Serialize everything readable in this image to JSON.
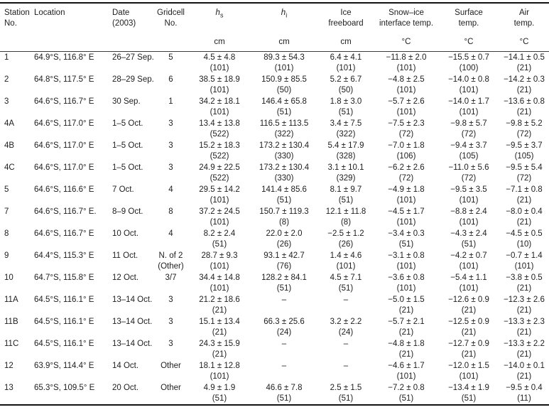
{
  "table": {
    "columns": [
      {
        "line1": "Station",
        "line2": "No.",
        "unit": ""
      },
      {
        "line1": "Location",
        "line2": "",
        "unit": ""
      },
      {
        "line1": "Date",
        "line2": "(2003)",
        "unit": ""
      },
      {
        "line1": "Gridcell",
        "line2": "No.",
        "unit": ""
      },
      {
        "var": "h",
        "sub": "s",
        "line1": "",
        "line2": "",
        "unit": "cm"
      },
      {
        "var": "h",
        "sub": "i",
        "line1": "",
        "line2": "",
        "unit": "cm"
      },
      {
        "line1": "Ice",
        "line2": "freeboard",
        "unit": "cm"
      },
      {
        "line1": "Snow–ice",
        "line2": "interface temp.",
        "unit": "°C"
      },
      {
        "line1": "Surface",
        "line2": "temp.",
        "unit": "°C"
      },
      {
        "line1": "Air",
        "line2": "temp.",
        "unit": "°C"
      }
    ],
    "rows": [
      {
        "cells": [
          [
            "1",
            ""
          ],
          [
            "64.9°S, 116.8° E",
            ""
          ],
          [
            "26–27 Sep.",
            ""
          ],
          [
            "5",
            ""
          ],
          [
            "4.5 ± 4.8",
            "(101)"
          ],
          [
            "89.3 ± 54.3",
            "(101)"
          ],
          [
            "6.4 ± 4.1",
            "(101)"
          ],
          [
            "−11.8 ± 2.0",
            "(101)"
          ],
          [
            "−15.5 ± 0.7",
            "(100)"
          ],
          [
            "−14.1 ± 0.5",
            "(21)"
          ]
        ]
      },
      {
        "cells": [
          [
            "2",
            ""
          ],
          [
            "64.8°S, 117.5° E",
            ""
          ],
          [
            "28–29 Sep.",
            ""
          ],
          [
            "6",
            ""
          ],
          [
            "38.5 ± 18.9",
            "(101)"
          ],
          [
            "150.9 ± 85.5",
            "(50)"
          ],
          [
            "5.2 ± 6.7",
            "(50)"
          ],
          [
            "−4.8 ± 2.5",
            "(101)"
          ],
          [
            "−14.0 ± 0.8",
            "(101)"
          ],
          [
            "−14.2 ± 0.3",
            "(21)"
          ]
        ]
      },
      {
        "cells": [
          [
            "3",
            ""
          ],
          [
            "64.6°S, 116.7° E",
            ""
          ],
          [
            "30 Sep.",
            ""
          ],
          [
            "1",
            ""
          ],
          [
            "34.2 ± 18.1",
            "(101)"
          ],
          [
            "146.4 ± 65.8",
            "(51)"
          ],
          [
            "1.8 ± 3.0",
            "(51)"
          ],
          [
            "−5.7 ± 2.6",
            "(101)"
          ],
          [
            "−14.0 ± 1.7",
            "(101)"
          ],
          [
            "−13.6 ± 0.8",
            "(21)"
          ]
        ]
      },
      {
        "cells": [
          [
            "4A",
            ""
          ],
          [
            "64.6°S, 117.0° E",
            ""
          ],
          [
            "1–5 Oct.",
            ""
          ],
          [
            "3",
            ""
          ],
          [
            "13.4 ± 13.8",
            "(522)"
          ],
          [
            "116.5 ± 113.5",
            "(322)"
          ],
          [
            "3.4 ± 7.5",
            "(322)"
          ],
          [
            "−7.5 ± 2.3",
            "(72)"
          ],
          [
            "−9.8 ± 5.7",
            "(72)"
          ],
          [
            "−9.8 ± 5.2",
            "(72)"
          ]
        ]
      },
      {
        "cells": [
          [
            "4B",
            ""
          ],
          [
            "64.6°S, 117.0° E",
            ""
          ],
          [
            "1–5 Oct.",
            ""
          ],
          [
            "3",
            ""
          ],
          [
            "15.2 ± 18.3",
            "(522)"
          ],
          [
            "173.2 ± 130.4",
            "(330)"
          ],
          [
            "5.4 ± 17.9",
            "(328)"
          ],
          [
            "−7.0 ± 1.8",
            "(106)"
          ],
          [
            "−9.4 ± 3.7",
            "(105)"
          ],
          [
            "−9.5 ± 3.7",
            "(105)"
          ]
        ]
      },
      {
        "cells": [
          [
            "4C",
            ""
          ],
          [
            "64.6°S, 117.0° E",
            ""
          ],
          [
            "1–5 Oct.",
            ""
          ],
          [
            "3",
            ""
          ],
          [
            "24.9 ± 22.5",
            "(522)"
          ],
          [
            "173.2 ± 130.4",
            "(330)"
          ],
          [
            "3.1 ± 10.1",
            "(329)"
          ],
          [
            "−6.2 ± 2.6",
            "(72)"
          ],
          [
            "−11.0 ± 5.6",
            "(72)"
          ],
          [
            "−9.5 ± 5.4",
            "(72)"
          ]
        ]
      },
      {
        "cells": [
          [
            "5",
            ""
          ],
          [
            "64.6°S, 116.6° E",
            ""
          ],
          [
            "7 Oct.",
            ""
          ],
          [
            "4",
            ""
          ],
          [
            "29.5 ± 14.2",
            "(101)"
          ],
          [
            "141.4 ± 85.6",
            "(51)"
          ],
          [
            "8.1 ± 9.7",
            "(51)"
          ],
          [
            "−4.9 ± 1.8",
            "(101)"
          ],
          [
            "−9.5 ± 3.5",
            "(101)"
          ],
          [
            "−7.1 ± 0.8",
            "(21)"
          ]
        ]
      },
      {
        "cells": [
          [
            "7",
            ""
          ],
          [
            "64.6°S, 116.7° E.",
            ""
          ],
          [
            "8–9 Oct.",
            ""
          ],
          [
            "8",
            ""
          ],
          [
            "37.2 ± 24.5",
            "(101)"
          ],
          [
            "150.7 ± 119.3",
            "(8)"
          ],
          [
            "12.1 ± 11.8",
            "(8)"
          ],
          [
            "−4.5 ± 1.7",
            "(101)"
          ],
          [
            "−8.8 ± 2.4",
            "(101)"
          ],
          [
            "−8.0 ± 0.4",
            "(21)"
          ]
        ]
      },
      {
        "cells": [
          [
            "8",
            ""
          ],
          [
            "64.6°S, 116.7° E",
            ""
          ],
          [
            "10 Oct.",
            ""
          ],
          [
            "4",
            ""
          ],
          [
            "8.2 ± 2.4",
            "(51)"
          ],
          [
            "22.0 ± 2.0",
            "(26)"
          ],
          [
            "−2.5 ± 1.2",
            "(26)"
          ],
          [
            "−3.4 ± 0.3",
            "(51)"
          ],
          [
            "−4.3 ± 2.4",
            "(51)"
          ],
          [
            "−4.5 ± 0.5",
            "(10)"
          ]
        ]
      },
      {
        "cells": [
          [
            "9",
            ""
          ],
          [
            "64.4°S, 115.3° E",
            ""
          ],
          [
            "11 Oct.",
            ""
          ],
          [
            "N. of 2",
            "(Other)"
          ],
          [
            "28.7 ± 9.3",
            "(101)"
          ],
          [
            "93.1 ± 42.7",
            "(76)"
          ],
          [
            "1.4 ± 4.6",
            "(101)"
          ],
          [
            "−3.1 ± 0.8",
            "(101)"
          ],
          [
            "−4.2 ± 0.7",
            "(101)"
          ],
          [
            "−0.7 ± 1.4",
            "(101)"
          ]
        ]
      },
      {
        "cells": [
          [
            "10",
            ""
          ],
          [
            "64.7°S, 115.8° E",
            ""
          ],
          [
            "12 Oct.",
            ""
          ],
          [
            "3/7",
            ""
          ],
          [
            "34.4 ± 14.8",
            "(101)"
          ],
          [
            "128.2 ± 84.1",
            "(51)"
          ],
          [
            "4.5 ± 7.1",
            "(51)"
          ],
          [
            "−3.6 ± 0.8",
            "(101)"
          ],
          [
            "−5.4 ± 1.1",
            "(101)"
          ],
          [
            "−3.8 ± 0.5",
            "(21)"
          ]
        ]
      },
      {
        "cells": [
          [
            "11A",
            ""
          ],
          [
            "64.5°S, 116.1° E",
            ""
          ],
          [
            "13–14 Oct.",
            ""
          ],
          [
            "3",
            ""
          ],
          [
            "21.2 ± 18.6",
            "(21)"
          ],
          [
            "–",
            ""
          ],
          [
            "–",
            ""
          ],
          [
            "−5.0 ± 1.5",
            "(21)"
          ],
          [
            "−12.6 ± 0.9",
            "(21)"
          ],
          [
            "−12.3 ± 2.6",
            "(21)"
          ]
        ]
      },
      {
        "cells": [
          [
            "11B",
            ""
          ],
          [
            "64.5°S, 116.1° E",
            ""
          ],
          [
            "13–14 Oct.",
            ""
          ],
          [
            "3",
            ""
          ],
          [
            "15.1 ± 13.4",
            "(21)"
          ],
          [
            "66.3 ± 25.6",
            "(24)"
          ],
          [
            "3.2 ± 2.2",
            "(24)"
          ],
          [
            "−5.7 ± 2.1",
            "(21)"
          ],
          [
            "−12.5 ± 0.9",
            "(21)"
          ],
          [
            "−13.3 ± 2.3",
            "(21)"
          ]
        ]
      },
      {
        "cells": [
          [
            "11C",
            ""
          ],
          [
            "64.5°S, 116.1° E",
            ""
          ],
          [
            "13–14 Oct.",
            ""
          ],
          [
            "3",
            ""
          ],
          [
            "24.3 ± 15.9",
            "(21)"
          ],
          [
            "–",
            ""
          ],
          [
            "–",
            ""
          ],
          [
            "−4.8 ± 1.8",
            "(21)"
          ],
          [
            "−12.7 ± 0.9",
            "(21)"
          ],
          [
            "−13.3 ± 2.2",
            "(21)"
          ]
        ]
      },
      {
        "cells": [
          [
            "12",
            ""
          ],
          [
            "63.9°S, 114.4° E",
            ""
          ],
          [
            "14 Oct.",
            ""
          ],
          [
            "Other",
            ""
          ],
          [
            "18.1 ± 12.8",
            "(101)"
          ],
          [
            "–",
            ""
          ],
          [
            "–",
            ""
          ],
          [
            "−4.6 ± 1.7",
            "(101)"
          ],
          [
            "−12.0 ± 1.5",
            "(101)"
          ],
          [
            "−14.0 ± 0.1",
            "(21)"
          ]
        ]
      },
      {
        "cells": [
          [
            "13",
            ""
          ],
          [
            "65.3°S, 109.5° E",
            ""
          ],
          [
            "20 Oct.",
            ""
          ],
          [
            "Other",
            ""
          ],
          [
            "4.9 ± 1.9",
            "(51)"
          ],
          [
            "46.6 ± 7.8",
            "(51)"
          ],
          [
            "2.5 ± 1.5",
            "(51)"
          ],
          [
            "−7.2 ± 0.8",
            "(51)"
          ],
          [
            "−13.4 ± 1.9",
            "(51)"
          ],
          [
            "−9.5 ± 0.4",
            "(11)"
          ]
        ]
      }
    ]
  }
}
